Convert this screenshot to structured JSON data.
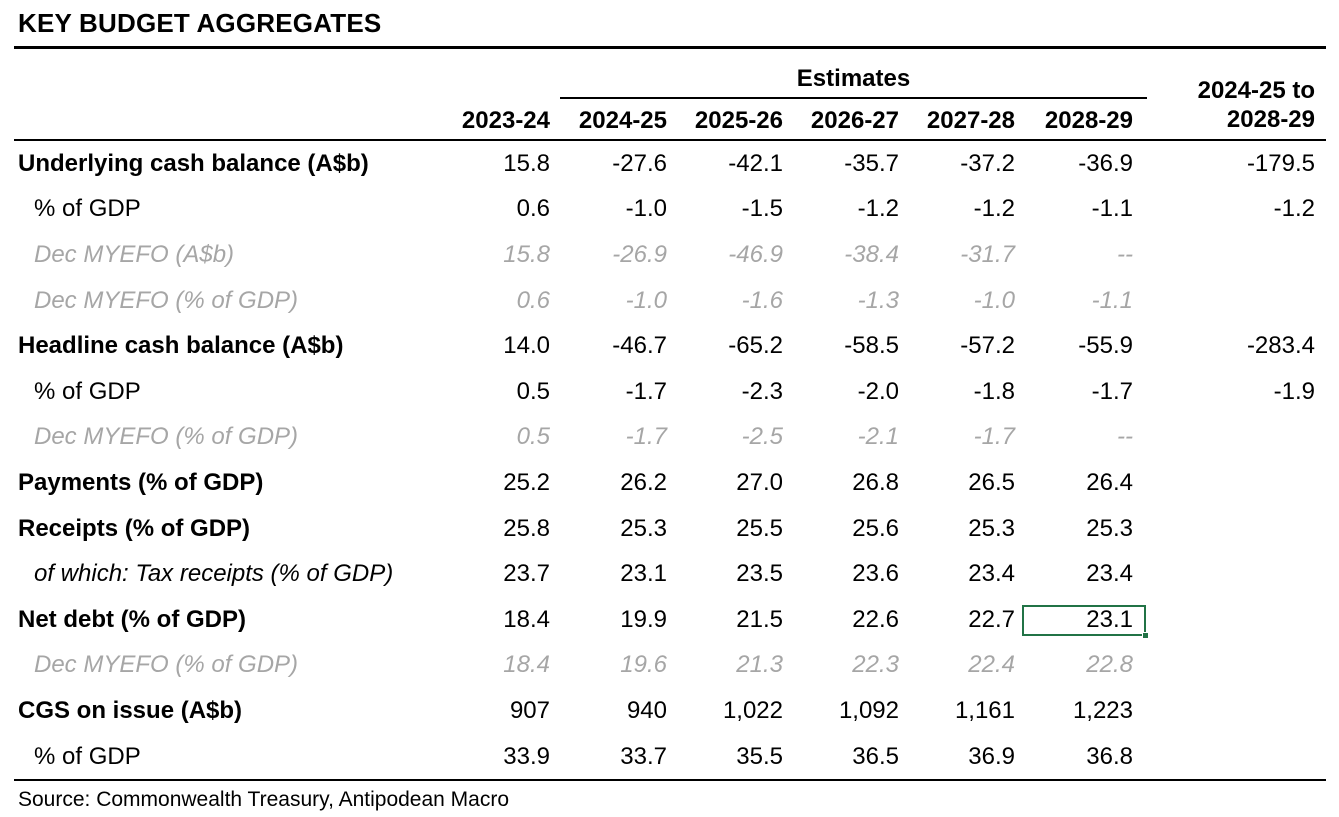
{
  "title": "KEY BUDGET AGGREGATES",
  "header": {
    "estimates_label": "Estimates",
    "first_year": "2023-24",
    "estimate_years": [
      "2024-25",
      "2025-26",
      "2026-27",
      "2027-28",
      "2028-29"
    ],
    "total_line1": "2024-25 to",
    "total_line2": "2028-29"
  },
  "chart_data": {
    "type": "table",
    "title": "KEY BUDGET AGGREGATES",
    "column_groups": {
      "estimates": [
        "2024-25",
        "2025-26",
        "2026-27",
        "2027-28",
        "2028-29"
      ]
    },
    "columns": [
      "",
      "2023-24",
      "2024-25",
      "2025-26",
      "2026-27",
      "2027-28",
      "2028-29",
      "2024-25 to 2028-29"
    ],
    "rows": [
      {
        "label": "Underlying cash balance (A$b)",
        "style": "bold",
        "values": [
          "15.8",
          "-27.6",
          "-42.1",
          "-35.7",
          "-37.2",
          "-36.9"
        ],
        "total": "-179.5"
      },
      {
        "label": "% of GDP",
        "style": "indent",
        "values": [
          "0.6",
          "-1.0",
          "-1.5",
          "-1.2",
          "-1.2",
          "-1.1"
        ],
        "total": "-1.2"
      },
      {
        "label": "Dec MYEFO (A$b)",
        "style": "myefo",
        "values": [
          "15.8",
          "-26.9",
          "-46.9",
          "-38.4",
          "-31.7",
          "--"
        ],
        "total": ""
      },
      {
        "label": "Dec MYEFO (% of GDP)",
        "style": "myefo",
        "values": [
          "0.6",
          "-1.0",
          "-1.6",
          "-1.3",
          "-1.0",
          "-1.1"
        ],
        "total": ""
      },
      {
        "label": "Headline cash balance (A$b)",
        "style": "bold",
        "values": [
          "14.0",
          "-46.7",
          "-65.2",
          "-58.5",
          "-57.2",
          "-55.9"
        ],
        "total": "-283.4"
      },
      {
        "label": "% of GDP",
        "style": "indent",
        "values": [
          "0.5",
          "-1.7",
          "-2.3",
          "-2.0",
          "-1.8",
          "-1.7"
        ],
        "total": "-1.9"
      },
      {
        "label": "Dec MYEFO (% of GDP)",
        "style": "myefo",
        "values": [
          "0.5",
          "-1.7",
          "-2.5",
          "-2.1",
          "-1.7",
          "--"
        ],
        "total": ""
      },
      {
        "label": "Payments (% of GDP)",
        "style": "bold",
        "values": [
          "25.2",
          "26.2",
          "27.0",
          "26.8",
          "26.5",
          "26.4"
        ],
        "total": ""
      },
      {
        "label": "Receipts (% of GDP)",
        "style": "bold",
        "values": [
          "25.8",
          "25.3",
          "25.5",
          "25.6",
          "25.3",
          "25.3"
        ],
        "total": ""
      },
      {
        "label": "of which: Tax receipts (% of GDP)",
        "style": "of-which",
        "values": [
          "23.7",
          "23.1",
          "23.5",
          "23.6",
          "23.4",
          "23.4"
        ],
        "total": ""
      },
      {
        "label": "Net debt (% of GDP)",
        "style": "bold",
        "values": [
          "18.4",
          "19.9",
          "21.5",
          "22.6",
          "22.7",
          "23.1"
        ],
        "total": ""
      },
      {
        "label": "Dec MYEFO (% of GDP)",
        "style": "myefo",
        "values": [
          "18.4",
          "19.6",
          "21.3",
          "22.3",
          "22.4",
          "22.8"
        ],
        "total": ""
      },
      {
        "label": "CGS on issue (A$b)",
        "style": "bold",
        "values": [
          "907",
          "940",
          "1,022",
          "1,092",
          "1,161",
          "1,223"
        ],
        "total": ""
      },
      {
        "label": "% of GDP",
        "style": "indent",
        "values": [
          "33.9",
          "33.7",
          "35.5",
          "36.5",
          "36.9",
          "36.8"
        ],
        "total": ""
      }
    ]
  },
  "selection": {
    "row_index": 10,
    "col_index": 5,
    "selected_value": "23.1"
  },
  "source": "Source: Commonwealth Treasury, Antipodean Macro",
  "colors": {
    "selection_green": "#217346",
    "myefo_gray": "#a6a6a6"
  }
}
